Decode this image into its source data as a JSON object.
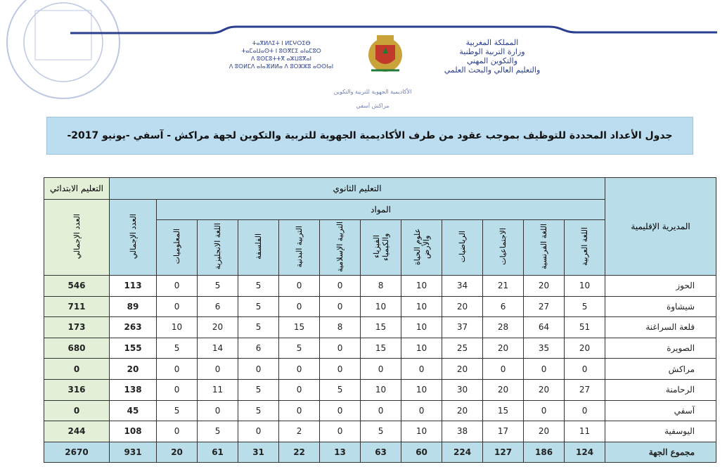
{
  "header": {
    "tifinagh": [
      "ⵜⴰⴳⵍⴷⵉⵜ ⵏ ⵍⵎⵖⵔⵉⴱ",
      "ⵜⴰⵎⴰⵡⴰⵙⵜ ⵏ ⵓⵙⴳⵎⵉ ⴰⵏⴰⵎⵓⵔ",
      "ⴷ ⵓⵙⵎⵓⵜⵜⴳ ⴰⵣⵡⵓⴳⴰⵏ",
      "ⴷ ⵓⵙⵍⵎⴷ ⴰⵏⴰⴼⵍⵍⴰ ⴷ ⵓⵔⵣⵣⵓ ⴰⵙⵙⵏⴰⵏ"
    ],
    "arabic": [
      "المملكة المغربية",
      "وزارة التربية الوطنية",
      "والتكوين المهني",
      "والتعليم العالي والبحث العلمي"
    ],
    "academy": "الأكاديمية الجهوية للتربية والتكوين",
    "region": "مراكش آسفي"
  },
  "title": "جدول الأعداد المحددة للتوظيف بموجب عقود من طرف الأكاديمية الجهوية للتربية والتكوين لجهة مراكش - آسفي   -يونيو 2017-",
  "table": {
    "direction_header": "المديرية الإقليمية",
    "secondary_header": "التعليم الثانوي",
    "primary_header": "التعليم الابتدائي",
    "subjects_header": "المواد",
    "secondary_total_header": "العدد الإجمالي",
    "primary_total_header": "العدد الإجمالي",
    "subjects": [
      "اللغة العربية",
      "اللغة الفرنسية",
      "الاجتماعيات",
      "الرياضيات",
      "علوم الحياة والأرض",
      "الفيزياء والكيمياء",
      "التربية الإسلامية",
      "التربية البدنية",
      "الفلسفة",
      "اللغة الانجليزية",
      "المعلوميات"
    ],
    "rows": [
      {
        "name": "الحوز",
        "subjects": [
          10,
          20,
          21,
          34,
          10,
          8,
          0,
          0,
          5,
          5,
          0
        ],
        "secondary_total": 113,
        "primary_total": 546
      },
      {
        "name": "شيشاوة",
        "subjects": [
          5,
          27,
          6,
          20,
          10,
          10,
          0,
          0,
          5,
          6,
          0
        ],
        "secondary_total": 89,
        "primary_total": 711
      },
      {
        "name": "قلعة السراغنة",
        "subjects": [
          51,
          64,
          28,
          37,
          10,
          15,
          8,
          15,
          5,
          20,
          10
        ],
        "secondary_total": 263,
        "primary_total": 173
      },
      {
        "name": "الصويرة",
        "subjects": [
          20,
          35,
          20,
          25,
          10,
          15,
          0,
          5,
          6,
          14,
          5
        ],
        "secondary_total": 155,
        "primary_total": 680
      },
      {
        "name": "مراكش",
        "subjects": [
          0,
          0,
          0,
          20,
          0,
          0,
          0,
          0,
          0,
          0,
          0
        ],
        "secondary_total": 20,
        "primary_total": 0
      },
      {
        "name": "الرحامنة",
        "subjects": [
          27,
          20,
          20,
          30,
          10,
          10,
          5,
          0,
          5,
          11,
          0
        ],
        "secondary_total": 138,
        "primary_total": 316
      },
      {
        "name": "آسفي",
        "subjects": [
          0,
          0,
          15,
          20,
          0,
          0,
          0,
          0,
          5,
          0,
          5
        ],
        "secondary_total": 45,
        "primary_total": 0
      },
      {
        "name": "اليوسفية",
        "subjects": [
          11,
          20,
          17,
          38,
          10,
          5,
          0,
          2,
          0,
          5,
          0
        ],
        "secondary_total": 108,
        "primary_total": 244
      }
    ],
    "totals": {
      "name": "مجموع الجهة",
      "subjects": [
        124,
        186,
        127,
        224,
        60,
        63,
        13,
        22,
        31,
        61,
        20
      ],
      "secondary_total": 931,
      "primary_total": 2670
    }
  }
}
